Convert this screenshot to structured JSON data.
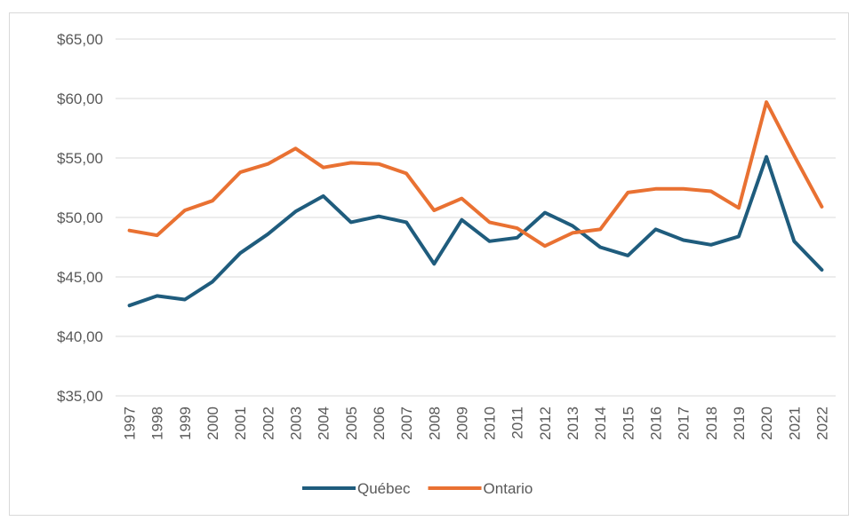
{
  "chart_data": {
    "type": "line",
    "categories": [
      "1997",
      "1998",
      "1999",
      "2000",
      "2001",
      "2002",
      "2003",
      "2004",
      "2005",
      "2006",
      "2007",
      "2008",
      "2009",
      "2010",
      "2011",
      "2012",
      "2013",
      "2014",
      "2015",
      "2016",
      "2017",
      "2018",
      "2019",
      "2020",
      "2021",
      "2022"
    ],
    "series": [
      {
        "name": "Québec",
        "color": "#1f5c7d",
        "values": [
          42.6,
          43.4,
          43.1,
          44.6,
          47.0,
          48.6,
          50.5,
          51.8,
          49.6,
          50.1,
          49.6,
          46.1,
          49.8,
          48.0,
          48.3,
          50.4,
          49.3,
          47.5,
          46.8,
          49.0,
          48.1,
          47.7,
          48.4,
          55.1,
          48.0,
          45.6
        ]
      },
      {
        "name": "Ontario",
        "color": "#e97132",
        "values": [
          48.9,
          48.5,
          50.6,
          51.4,
          53.8,
          54.5,
          55.8,
          54.2,
          54.6,
          54.5,
          53.7,
          50.6,
          51.6,
          49.6,
          49.1,
          47.6,
          48.7,
          49.0,
          52.1,
          52.4,
          52.4,
          52.2,
          50.8,
          59.7,
          55.2,
          50.9
        ]
      }
    ],
    "ylim": [
      35,
      65
    ],
    "yticks": [
      {
        "value": 35,
        "label": "$35,00"
      },
      {
        "value": 40,
        "label": "$40,00"
      },
      {
        "value": 45,
        "label": "$45,00"
      },
      {
        "value": 50,
        "label": "$50,00"
      },
      {
        "value": 55,
        "label": "$55,00"
      },
      {
        "value": 60,
        "label": "$60,00"
      },
      {
        "value": 65,
        "label": "$65,00"
      }
    ],
    "grid": true,
    "legend": "bottom"
  }
}
